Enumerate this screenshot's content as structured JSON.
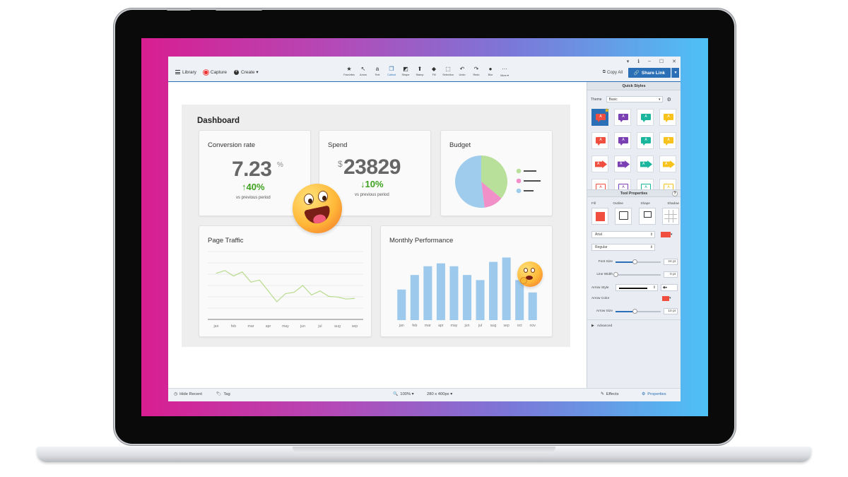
{
  "toolbar": {
    "left": [
      {
        "label": "Library",
        "icon": "menu-icon"
      },
      {
        "label": "Capture",
        "icon": "record-icon"
      },
      {
        "label": "Create ▾",
        "icon": "plus-circle-icon"
      }
    ],
    "tools": [
      {
        "label": "Favorites",
        "glyph": "★",
        "icon": "star-icon"
      },
      {
        "label": "Arrow",
        "glyph": "↖",
        "icon": "arrow-tool-icon"
      },
      {
        "label": "Text",
        "glyph": "a",
        "icon": "text-tool-icon"
      },
      {
        "label": "Callout",
        "glyph": "❐",
        "icon": "callout-tool-icon",
        "active": true
      },
      {
        "label": "Shape",
        "glyph": "◩",
        "icon": "shape-tool-icon"
      },
      {
        "label": "Stamp",
        "glyph": "⬆",
        "icon": "stamp-tool-icon"
      },
      {
        "label": "Fill",
        "glyph": "◆",
        "icon": "fill-tool-icon"
      },
      {
        "label": "Selection",
        "glyph": "⬚",
        "icon": "selection-tool-icon"
      },
      {
        "label": "Undo",
        "glyph": "↶",
        "icon": "undo-icon"
      },
      {
        "label": "Redo",
        "glyph": "↷",
        "icon": "redo-icon"
      },
      {
        "label": "Blur",
        "glyph": "●",
        "icon": "blur-tool-icon"
      },
      {
        "label": "More ▾",
        "glyph": "···",
        "icon": "more-icon"
      }
    ],
    "copy_all": "Copy All",
    "share_link": "Share Link",
    "window_controls": [
      "▾",
      "ℹ",
      "–",
      "☐",
      "✕"
    ]
  },
  "dashboard": {
    "title": "Dashboard",
    "conversion": {
      "title": "Conversion rate",
      "value": "7.23",
      "suffix": "%",
      "delta": "40%",
      "sub": "vs previous period"
    },
    "spend": {
      "title": "Spend",
      "prefix": "$",
      "value": "23829",
      "delta": "10%",
      "sub": "vs previous period"
    },
    "budget": {
      "title": "Budget"
    },
    "traffic": {
      "title": "Page Traffic"
    },
    "monthly": {
      "title": "Monthly Performance"
    }
  },
  "chart_data": [
    {
      "type": "pie",
      "title": "Budget",
      "values": [
        36,
        12,
        52
      ],
      "colors": [
        "#b8e09a",
        "#f08fc8",
        "#9fcbec"
      ],
      "legend_colors": [
        "#b8e09a",
        "#f08fc8",
        "#9fcbec"
      ]
    },
    {
      "type": "line",
      "title": "Page Traffic",
      "categories": [
        "jan",
        "feb",
        "mar",
        "apr",
        "may",
        "jun",
        "jul",
        "aug",
        "sep"
      ],
      "x": [
        0,
        0.5,
        1,
        1.5,
        2,
        2.5,
        3,
        3.5,
        4,
        4.5,
        5,
        5.5,
        6,
        6.5,
        7,
        7.5,
        8
      ],
      "values": [
        68,
        72,
        64,
        70,
        55,
        58,
        42,
        26,
        38,
        40,
        50,
        36,
        42,
        34,
        33,
        30,
        31
      ],
      "ylim": [
        0,
        100
      ],
      "color": "#b8dc8e",
      "grid": true
    },
    {
      "type": "bar",
      "title": "Monthly Performance",
      "categories": [
        "jan",
        "feb",
        "mar",
        "apr",
        "may",
        "jun",
        "jul",
        "aug",
        "sep",
        "oct",
        "nov"
      ],
      "values": [
        42,
        62,
        74,
        78,
        74,
        62,
        55,
        80,
        86,
        55,
        38
      ],
      "ylim": [
        0,
        100
      ],
      "color": "#9dc9ec"
    }
  ],
  "panel": {
    "quick_styles": "Quick Styles",
    "theme_label": "Theme",
    "theme_value": "Basic",
    "style_colors": [
      "#f04e3e",
      "#7b3fb4",
      "#19b69d",
      "#f7c21c"
    ],
    "tool_properties": "Tool Properties",
    "tp_labels": [
      "Fill",
      "Outline",
      "Shape",
      "Shadow"
    ],
    "fill_color": "#f04e3e",
    "font_family": "Arial",
    "font_style": "Regular",
    "font_size_label": "Font Size",
    "font_size": "24 pt",
    "font_size_level": 0.42,
    "line_width_label": "Line Width",
    "line_width": "0 pt",
    "line_width_level": 0.0,
    "arrow_style_label": "Arrow Style",
    "arrow_color_label": "Arrow Color",
    "arrow_color": "#f04e3e",
    "arrow_size_label": "Arrow Size",
    "arrow_size": "10 pt",
    "arrow_size_level": 0.42,
    "advanced": "Advanced"
  },
  "status": {
    "hide_recent": "Hide Recent",
    "tag": "Tag",
    "zoom": "100% ▾",
    "size": "280 x 400px ▾",
    "effects": "Effects",
    "properties": "Properties"
  },
  "colors": {
    "accent": "#2b6fb7",
    "positive": "#3ea11e"
  }
}
